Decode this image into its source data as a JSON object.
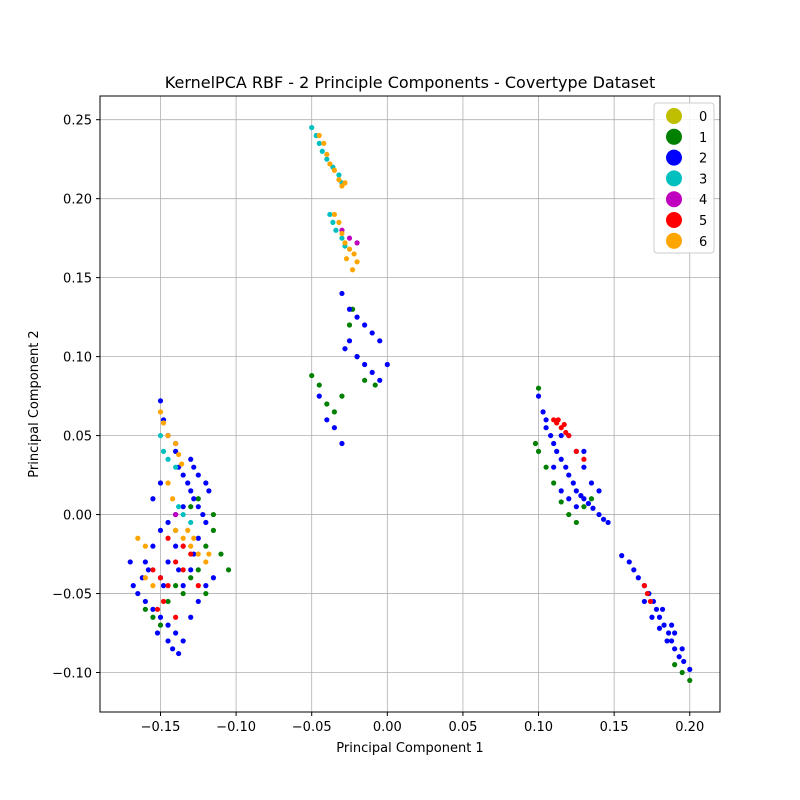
{
  "chart_data": {
    "type": "scatter",
    "title": "KernelPCA RBF - 2 Principle Components - Covertype Dataset",
    "xlabel": "Principal Component 1",
    "ylabel": "Principal Component 2",
    "xlim": [
      -0.19,
      0.22
    ],
    "ylim": [
      -0.125,
      0.265
    ],
    "xticks": [
      -0.15,
      -0.1,
      -0.05,
      0.0,
      0.05,
      0.1,
      0.15,
      0.2
    ],
    "xtick_labels": [
      "−0.15",
      "−0.10",
      "−0.05",
      "0.00",
      "0.05",
      "0.10",
      "0.15",
      "0.20"
    ],
    "yticks": [
      -0.1,
      -0.05,
      0.0,
      0.05,
      0.1,
      0.15,
      0.2,
      0.25
    ],
    "ytick_labels": [
      "−0.10",
      "−0.05",
      "0.00",
      "0.05",
      "0.10",
      "0.15",
      "0.20",
      "0.25"
    ],
    "grid": true,
    "legend_position": "top-right",
    "series": [
      {
        "name": "0",
        "color": "#bfbf00",
        "points": []
      },
      {
        "name": "1",
        "color": "#008000",
        "points": [
          [
            -0.05,
            0.088
          ],
          [
            -0.045,
            0.082
          ],
          [
            -0.04,
            0.07
          ],
          [
            -0.035,
            0.065
          ],
          [
            -0.03,
            0.075
          ],
          [
            -0.025,
            0.12
          ],
          [
            -0.023,
            0.13
          ],
          [
            -0.02,
            0.1
          ],
          [
            -0.015,
            0.085
          ],
          [
            -0.008,
            0.082
          ],
          [
            0.1,
            0.08
          ],
          [
            0.098,
            0.045
          ],
          [
            0.1,
            0.04
          ],
          [
            0.105,
            0.03
          ],
          [
            0.11,
            0.02
          ],
          [
            0.115,
            0.008
          ],
          [
            0.12,
            0.0
          ],
          [
            0.125,
            -0.005
          ],
          [
            0.13,
            0.005
          ],
          [
            0.135,
            0.01
          ],
          [
            0.2,
            -0.105
          ],
          [
            0.195,
            -0.1
          ],
          [
            0.19,
            -0.095
          ],
          [
            -0.16,
            -0.06
          ],
          [
            -0.155,
            -0.065
          ],
          [
            -0.15,
            -0.07
          ],
          [
            -0.145,
            -0.055
          ],
          [
            -0.13,
            -0.04
          ],
          [
            -0.125,
            -0.035
          ],
          [
            -0.12,
            -0.02
          ],
          [
            -0.115,
            -0.01
          ],
          [
            -0.11,
            -0.025
          ],
          [
            -0.105,
            -0.035
          ],
          [
            -0.12,
            -0.05
          ],
          [
            -0.125,
            0.01
          ],
          [
            -0.13,
            0.005
          ],
          [
            -0.115,
            0.0
          ],
          [
            -0.14,
            -0.045
          ],
          [
            -0.135,
            -0.05
          ]
        ]
      },
      {
        "name": "2",
        "color": "#0000ff",
        "points": [
          [
            -0.03,
            0.14
          ],
          [
            -0.025,
            0.13
          ],
          [
            -0.02,
            0.125
          ],
          [
            -0.015,
            0.12
          ],
          [
            -0.01,
            0.115
          ],
          [
            -0.005,
            0.11
          ],
          [
            -0.02,
            0.1
          ],
          [
            -0.015,
            0.095
          ],
          [
            -0.01,
            0.09
          ],
          [
            -0.005,
            0.085
          ],
          [
            0.0,
            0.095
          ],
          [
            -0.045,
            0.075
          ],
          [
            -0.04,
            0.06
          ],
          [
            -0.035,
            0.055
          ],
          [
            -0.03,
            0.045
          ],
          [
            -0.025,
            0.11
          ],
          [
            -0.028,
            0.105
          ],
          [
            0.1,
            0.075
          ],
          [
            0.103,
            0.065
          ],
          [
            0.105,
            0.055
          ],
          [
            0.108,
            0.05
          ],
          [
            0.11,
            0.045
          ],
          [
            0.112,
            0.04
          ],
          [
            0.115,
            0.035
          ],
          [
            0.118,
            0.03
          ],
          [
            0.12,
            0.025
          ],
          [
            0.123,
            0.02
          ],
          [
            0.125,
            0.015
          ],
          [
            0.128,
            0.012
          ],
          [
            0.13,
            0.01
          ],
          [
            0.133,
            0.007
          ],
          [
            0.136,
            0.004
          ],
          [
            0.14,
            0.0
          ],
          [
            0.143,
            -0.003
          ],
          [
            0.146,
            -0.005
          ],
          [
            0.12,
            0.05
          ],
          [
            0.125,
            0.04
          ],
          [
            0.13,
            0.03
          ],
          [
            0.135,
            0.02
          ],
          [
            0.14,
            0.015
          ],
          [
            0.11,
            0.03
          ],
          [
            0.115,
            0.015
          ],
          [
            0.12,
            0.01
          ],
          [
            0.105,
            0.06
          ],
          [
            0.115,
            0.05
          ],
          [
            0.13,
            0.04
          ],
          [
            0.125,
            0.005
          ],
          [
            0.155,
            -0.026
          ],
          [
            0.16,
            -0.03
          ],
          [
            0.163,
            -0.035
          ],
          [
            0.166,
            -0.04
          ],
          [
            0.17,
            -0.045
          ],
          [
            0.173,
            -0.05
          ],
          [
            0.176,
            -0.055
          ],
          [
            0.178,
            -0.06
          ],
          [
            0.18,
            -0.065
          ],
          [
            0.183,
            -0.07
          ],
          [
            0.186,
            -0.075
          ],
          [
            0.188,
            -0.08
          ],
          [
            0.19,
            -0.085
          ],
          [
            0.193,
            -0.09
          ],
          [
            0.196,
            -0.093
          ],
          [
            0.2,
            -0.098
          ],
          [
            0.175,
            -0.065
          ],
          [
            0.18,
            -0.072
          ],
          [
            0.185,
            -0.08
          ],
          [
            0.19,
            -0.075
          ],
          [
            0.195,
            -0.085
          ],
          [
            0.17,
            -0.055
          ],
          [
            0.182,
            -0.06
          ],
          [
            0.188,
            -0.07
          ],
          [
            -0.15,
            0.072
          ],
          [
            -0.148,
            0.06
          ],
          [
            -0.145,
            0.05
          ],
          [
            -0.14,
            0.04
          ],
          [
            -0.138,
            0.03
          ],
          [
            -0.135,
            0.025
          ],
          [
            -0.132,
            0.02
          ],
          [
            -0.13,
            0.015
          ],
          [
            -0.128,
            0.01
          ],
          [
            -0.125,
            0.005
          ],
          [
            -0.122,
            0.0
          ],
          [
            -0.12,
            -0.005
          ],
          [
            -0.135,
            0.005
          ],
          [
            -0.14,
            0.0
          ],
          [
            -0.145,
            -0.005
          ],
          [
            -0.15,
            -0.01
          ],
          [
            -0.155,
            -0.02
          ],
          [
            -0.16,
            -0.03
          ],
          [
            -0.162,
            -0.04
          ],
          [
            -0.165,
            -0.05
          ],
          [
            -0.16,
            -0.055
          ],
          [
            -0.155,
            -0.06
          ],
          [
            -0.15,
            -0.065
          ],
          [
            -0.145,
            -0.07
          ],
          [
            -0.14,
            -0.075
          ],
          [
            -0.142,
            -0.085
          ],
          [
            -0.135,
            -0.08
          ],
          [
            -0.13,
            -0.065
          ],
          [
            -0.125,
            -0.055
          ],
          [
            -0.12,
            -0.045
          ],
          [
            -0.115,
            -0.04
          ],
          [
            -0.128,
            -0.025
          ],
          [
            -0.138,
            -0.035
          ],
          [
            -0.148,
            -0.045
          ],
          [
            -0.158,
            -0.035
          ],
          [
            -0.17,
            -0.03
          ],
          [
            -0.168,
            -0.045
          ],
          [
            -0.152,
            -0.075
          ],
          [
            -0.145,
            -0.08
          ],
          [
            -0.138,
            -0.088
          ],
          [
            -0.125,
            -0.015
          ],
          [
            -0.13,
            -0.035
          ],
          [
            -0.135,
            -0.045
          ],
          [
            -0.14,
            -0.02
          ],
          [
            -0.145,
            -0.03
          ],
          [
            -0.15,
            -0.04
          ],
          [
            -0.155,
            0.01
          ],
          [
            -0.15,
            0.02
          ],
          [
            -0.14,
            0.045
          ],
          [
            -0.128,
            0.03
          ],
          [
            -0.13,
            0.035
          ],
          [
            -0.125,
            0.025
          ],
          [
            -0.12,
            0.02
          ],
          [
            -0.118,
            0.015
          ]
        ]
      },
      {
        "name": "3",
        "color": "#00bfbf",
        "points": [
          [
            -0.05,
            0.245
          ],
          [
            -0.047,
            0.24
          ],
          [
            -0.045,
            0.235
          ],
          [
            -0.043,
            0.23
          ],
          [
            -0.04,
            0.225
          ],
          [
            -0.036,
            0.22
          ],
          [
            -0.032,
            0.215
          ],
          [
            -0.03,
            0.21
          ],
          [
            -0.038,
            0.19
          ],
          [
            -0.036,
            0.185
          ],
          [
            -0.034,
            0.18
          ],
          [
            -0.03,
            0.175
          ],
          [
            -0.028,
            0.17
          ],
          [
            -0.15,
            0.05
          ],
          [
            -0.148,
            0.04
          ],
          [
            -0.145,
            0.035
          ],
          [
            -0.14,
            0.03
          ],
          [
            -0.135,
            0.0
          ],
          [
            -0.13,
            -0.005
          ],
          [
            -0.14,
            -0.01
          ],
          [
            -0.138,
            0.005
          ]
        ]
      },
      {
        "name": "4",
        "color": "#bf00bf",
        "points": [
          [
            -0.03,
            0.18
          ],
          [
            -0.025,
            0.175
          ],
          [
            -0.02,
            0.172
          ],
          [
            -0.14,
            0.0
          ],
          [
            -0.135,
            -0.02
          ]
        ]
      },
      {
        "name": "5",
        "color": "#ff0000",
        "points": [
          [
            0.11,
            0.06
          ],
          [
            0.112,
            0.058
          ],
          [
            0.115,
            0.055
          ],
          [
            0.118,
            0.052
          ],
          [
            0.12,
            0.05
          ],
          [
            0.113,
            0.06
          ],
          [
            0.117,
            0.057
          ],
          [
            0.125,
            0.04
          ],
          [
            0.13,
            0.035
          ],
          [
            0.17,
            -0.045
          ],
          [
            0.172,
            -0.05
          ],
          [
            0.174,
            -0.055
          ],
          [
            -0.155,
            -0.035
          ],
          [
            -0.15,
            -0.04
          ],
          [
            -0.145,
            -0.045
          ],
          [
            -0.14,
            -0.03
          ],
          [
            -0.135,
            -0.02
          ],
          [
            -0.13,
            -0.025
          ],
          [
            -0.148,
            -0.055
          ],
          [
            -0.152,
            -0.06
          ],
          [
            -0.14,
            -0.065
          ],
          [
            -0.135,
            -0.035
          ],
          [
            -0.145,
            -0.015
          ],
          [
            -0.125,
            -0.045
          ]
        ]
      },
      {
        "name": "6",
        "color": "#ffa500",
        "points": [
          [
            -0.045,
            0.24
          ],
          [
            -0.042,
            0.235
          ],
          [
            -0.04,
            0.228
          ],
          [
            -0.038,
            0.222
          ],
          [
            -0.035,
            0.218
          ],
          [
            -0.032,
            0.212
          ],
          [
            -0.03,
            0.208
          ],
          [
            -0.028,
            0.21
          ],
          [
            -0.035,
            0.19
          ],
          [
            -0.032,
            0.185
          ],
          [
            -0.03,
            0.178
          ],
          [
            -0.028,
            0.172
          ],
          [
            -0.025,
            0.168
          ],
          [
            -0.022,
            0.165
          ],
          [
            -0.02,
            0.16
          ],
          [
            -0.023,
            0.155
          ],
          [
            -0.027,
            0.162
          ],
          [
            -0.15,
            0.065
          ],
          [
            -0.148,
            0.058
          ],
          [
            -0.145,
            0.05
          ],
          [
            -0.14,
            0.045
          ],
          [
            -0.138,
            0.038
          ],
          [
            -0.136,
            0.032
          ],
          [
            -0.14,
            -0.01
          ],
          [
            -0.135,
            -0.015
          ],
          [
            -0.13,
            -0.02
          ],
          [
            -0.125,
            -0.025
          ],
          [
            -0.12,
            -0.03
          ],
          [
            -0.118,
            -0.025
          ],
          [
            -0.132,
            -0.01
          ],
          [
            -0.128,
            -0.015
          ],
          [
            -0.16,
            -0.02
          ],
          [
            -0.165,
            -0.015
          ],
          [
            -0.155,
            -0.045
          ],
          [
            -0.16,
            -0.04
          ],
          [
            -0.145,
            0.02
          ],
          [
            -0.142,
            0.01
          ]
        ]
      }
    ]
  }
}
